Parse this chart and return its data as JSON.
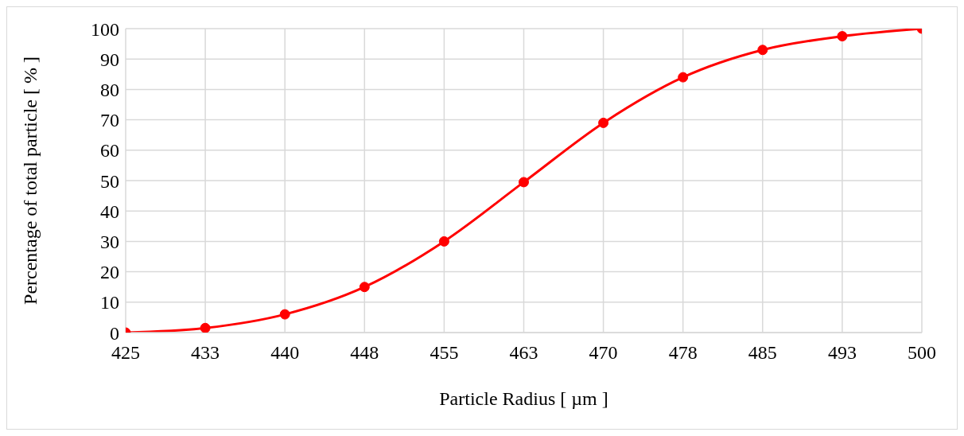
{
  "chart_data": {
    "type": "line",
    "xlabel": "Particle Radius [ µm ]",
    "ylabel": "Percentage of total particle [ % ]",
    "categories": [
      "425",
      "433",
      "440",
      "448",
      "455",
      "463",
      "470",
      "478",
      "485",
      "493",
      "500"
    ],
    "series": [
      {
        "color": "#ff0000",
        "values": [
          0,
          1.5,
          6,
          15,
          30,
          49.5,
          69,
          84,
          93,
          97.5,
          100
        ]
      }
    ],
    "ylim": [
      0,
      100
    ],
    "yticks": [
      0,
      10,
      20,
      30,
      40,
      50,
      60,
      70,
      80,
      90,
      100
    ],
    "grid": true,
    "marker": "circle",
    "line_style": "solid"
  }
}
